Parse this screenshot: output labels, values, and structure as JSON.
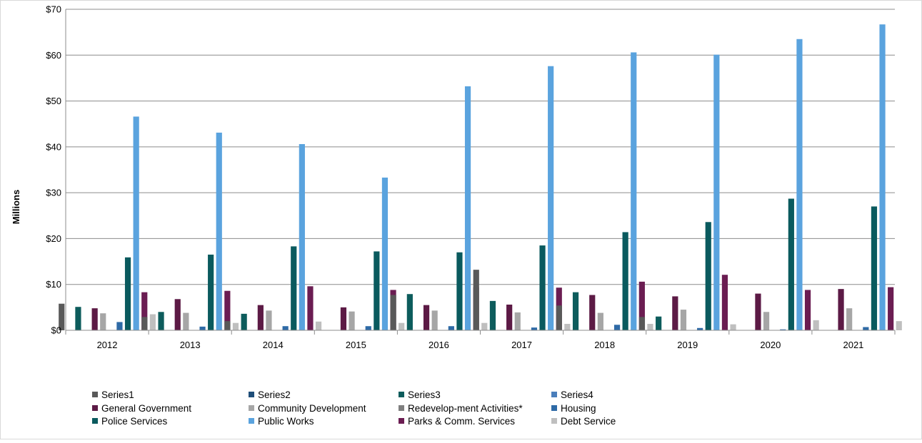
{
  "chart_data": {
    "type": "bar",
    "title": "",
    "xlabel": "",
    "ylabel": "Millions",
    "ylim": [
      0,
      70
    ],
    "y_ticks": [
      0,
      10,
      20,
      30,
      40,
      50,
      60,
      70
    ],
    "y_tick_labels": [
      "$0",
      "$10",
      "$20",
      "$30",
      "$40",
      "$50",
      "$60",
      "$70"
    ],
    "grid": "horizontal",
    "legend_position": "bottom",
    "categories": [
      "2012",
      "2013",
      "2014",
      "2015",
      "2016",
      "2017",
      "2018",
      "2019",
      "2020",
      "2021"
    ],
    "series": [
      {
        "name": "Series1",
        "color": "#595959",
        "values": [
          5.8,
          2.9,
          2.0,
          0,
          7.7,
          13.2,
          5.4,
          2.9,
          0,
          0
        ]
      },
      {
        "name": "Series2",
        "color": "#1f4e79",
        "values": [
          0,
          0,
          0,
          0,
          0,
          0,
          0,
          0,
          0,
          0
        ]
      },
      {
        "name": "Series3",
        "color": "#0d5c5c",
        "values": [
          5.1,
          4.0,
          3.6,
          0,
          7.9,
          6.4,
          8.3,
          3.0,
          0,
          0
        ]
      },
      {
        "name": "Series4",
        "color": "#4a7ebb",
        "values": [
          0,
          0,
          0,
          0,
          0,
          0,
          0,
          0,
          0,
          0
        ]
      },
      {
        "name": "General Government",
        "color": "#5c1a45",
        "values": [
          4.8,
          6.8,
          5.5,
          5.0,
          5.5,
          5.6,
          7.7,
          7.4,
          8.0,
          9.0
        ]
      },
      {
        "name": "Community Development",
        "color": "#a6a6a6",
        "values": [
          3.7,
          3.8,
          4.3,
          4.1,
          4.3,
          3.9,
          3.8,
          4.5,
          4.0,
          4.8
        ]
      },
      {
        "name": "Redevelop-ment Activities*",
        "color": "#7f7f7f",
        "values": [
          0,
          0,
          0,
          0,
          0,
          0,
          0,
          0,
          0,
          0
        ]
      },
      {
        "name": "Housing",
        "color": "#2e6aa6",
        "values": [
          1.8,
          0.8,
          0.9,
          0.9,
          0.9,
          0.6,
          1.2,
          0.5,
          0.2,
          0.7
        ]
      },
      {
        "name": "Police Services",
        "color": "#0a5a5e",
        "values": [
          15.9,
          16.5,
          18.3,
          17.2,
          17.0,
          18.5,
          21.4,
          23.6,
          28.7,
          27.0
        ]
      },
      {
        "name": "Public Works",
        "color": "#5aa3de",
        "values": [
          46.6,
          43.1,
          40.6,
          33.3,
          53.2,
          57.6,
          60.6,
          60.1,
          63.5,
          66.7
        ]
      },
      {
        "name": "Parks & Comm. Services",
        "color": "#6b1d52",
        "values": [
          8.3,
          8.6,
          9.6,
          8.8,
          9.4,
          9.3,
          10.6,
          12.1,
          8.8,
          9.4
        ]
      },
      {
        "name": "Debt Service",
        "color": "#bfbfbf",
        "values": [
          3.5,
          1.6,
          1.9,
          1.6,
          1.6,
          1.4,
          1.4,
          1.3,
          2.2,
          2.0
        ]
      }
    ]
  }
}
